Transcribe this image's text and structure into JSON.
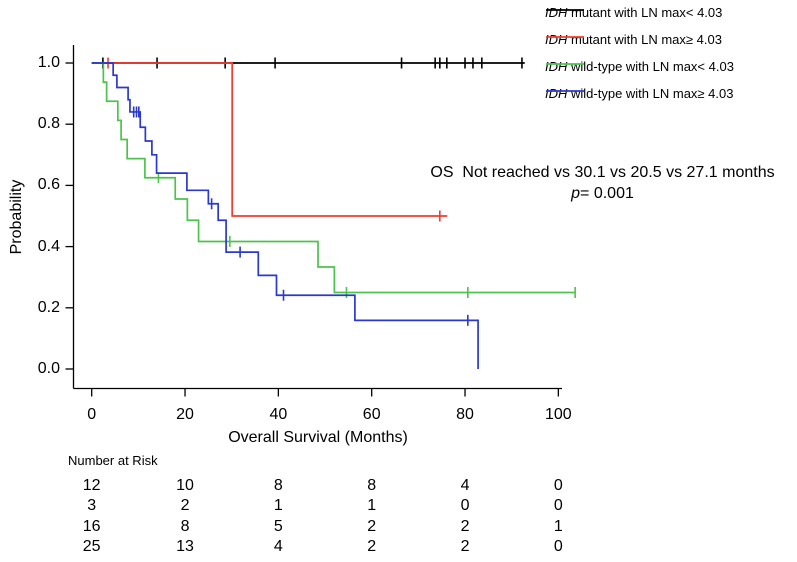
{
  "legend": {
    "items": [
      {
        "prefix": "IDH",
        "rest": " mutant with LN max< 4.03",
        "color": "#000000"
      },
      {
        "prefix": "IDH",
        "rest": " mutant with LN max≥ 4.03",
        "color": "#f43b2d"
      },
      {
        "prefix": "IDH",
        "rest": " wild-type with LN max< 4.03",
        "color": "#4cc34c"
      },
      {
        "prefix": "IDH",
        "rest": " wild-type with LN max≥ 4.03",
        "color": "#2b38cf"
      }
    ]
  },
  "chart_data": {
    "type": "line",
    "subtype": "kaplan-meier-step-curves",
    "xlabel": "Overall Survival (Months)",
    "ylabel": "Probability",
    "xlim": [
      0,
      104
    ],
    "ylim": [
      0.0,
      1.0
    ],
    "x_ticks": [
      0,
      20,
      40,
      60,
      80,
      100
    ],
    "y_ticks": [
      "0.0",
      "0.2",
      "0.4",
      "0.6",
      "0.8",
      "1.0"
    ],
    "grid": "off",
    "legend_position": "top-right-outside",
    "annotation": {
      "line1": "OS  Not reached vs 30.1 vs 20.5 vs 27.1 months",
      "p_italic": "p",
      "p_rest": "= 0.001"
    },
    "series": [
      {
        "name": "IDH mutant with LN max< 4.03",
        "color": "#000000",
        "steps": [
          [
            0,
            1.0
          ]
        ],
        "end": 92.8,
        "censors": [
          2.4,
          14.0,
          28.6,
          39.3,
          66.4,
          73.6,
          74.6,
          76.1,
          80.0,
          81.7,
          83.6,
          92.2
        ]
      },
      {
        "name": "IDH mutant with LN max≥ 4.03",
        "color": "#f43b2d",
        "steps": [
          [
            0,
            1.0
          ],
          [
            30.1,
            0.5
          ]
        ],
        "end": 76.2,
        "censors": [
          3.5,
          74.6
        ]
      },
      {
        "name": "IDH wild-type with LN max< 4.03",
        "color": "#4cc34c",
        "steps": [
          [
            0,
            1.0
          ],
          [
            2.5,
            0.9375
          ],
          [
            3.2,
            0.875
          ],
          [
            5.6,
            0.8125
          ],
          [
            6.3,
            0.75
          ],
          [
            7.6,
            0.6875
          ],
          [
            11.4,
            0.625
          ],
          [
            17.9,
            0.5556
          ],
          [
            20.5,
            0.4861
          ],
          [
            22.9,
            0.4167
          ],
          [
            48.5,
            0.3333
          ],
          [
            52.0,
            0.25
          ]
        ],
        "end": 103.6,
        "censors": [
          14.3,
          29.6,
          54.6,
          80.6,
          103.6
        ]
      },
      {
        "name": "IDH wild-type with LN max≥ 4.03",
        "color": "#2b38cf",
        "steps": [
          [
            0,
            1.0
          ],
          [
            4.6,
            0.96
          ],
          [
            5.4,
            0.92
          ],
          [
            7.8,
            0.88
          ],
          [
            8.2,
            0.84
          ],
          [
            10.4,
            0.79
          ],
          [
            11.5,
            0.745
          ],
          [
            12.9,
            0.7
          ],
          [
            13.9,
            0.64
          ],
          [
            20.4,
            0.584
          ],
          [
            25.0,
            0.54
          ],
          [
            27.1,
            0.486
          ],
          [
            28.8,
            0.382
          ],
          [
            35.7,
            0.306
          ],
          [
            39.6,
            0.241
          ],
          [
            56.4,
            0.159
          ],
          [
            82.8,
            0.0
          ]
        ],
        "end": 82.8,
        "censors": [
          9.0,
          9.6,
          10.1,
          25.7,
          31.8,
          41.1,
          80.6
        ]
      }
    ],
    "number_at_risk": {
      "title": "Number at Risk",
      "times": [
        0,
        20,
        40,
        60,
        80,
        100
      ],
      "rows": [
        [
          "12",
          "10",
          "8",
          "8",
          "4",
          "0"
        ],
        [
          "3",
          "2",
          "1",
          "1",
          "0",
          "0"
        ],
        [
          "16",
          "8",
          "5",
          "2",
          "2",
          "1"
        ],
        [
          "25",
          "13",
          "4",
          "2",
          "2",
          "0"
        ]
      ]
    }
  }
}
